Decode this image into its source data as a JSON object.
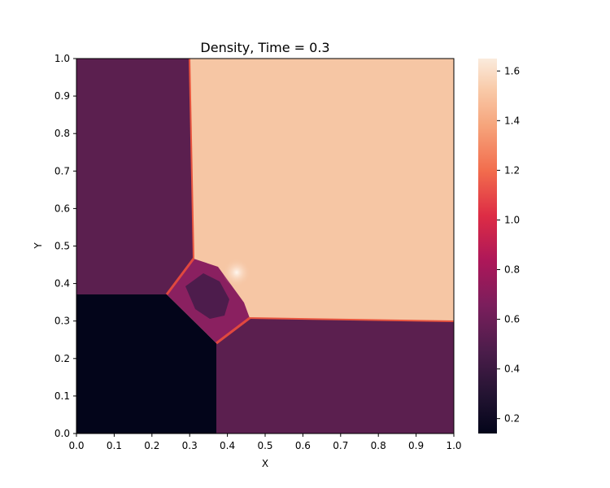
{
  "chart_data": {
    "type": "heatmap",
    "title": "Density, Time = 0.3",
    "xlabel": "X",
    "ylabel": "Y",
    "xlim": [
      0.0,
      1.0
    ],
    "ylim": [
      0.0,
      1.0
    ],
    "x_ticks": [
      "0.0",
      "0.1",
      "0.2",
      "0.3",
      "0.4",
      "0.5",
      "0.6",
      "0.7",
      "0.8",
      "0.9",
      "1.0"
    ],
    "y_ticks": [
      "0.0",
      "0.1",
      "0.2",
      "0.3",
      "0.4",
      "0.5",
      "0.6",
      "0.7",
      "0.8",
      "0.9",
      "1.0"
    ],
    "colorbar": {
      "colormap": "rocket",
      "range": [
        0.14,
        1.65
      ],
      "ticks": [
        0.2,
        0.4,
        0.6,
        0.8,
        1.0,
        1.2,
        1.4,
        1.6
      ],
      "tick_labels": [
        "0.2",
        "0.4",
        "0.6",
        "0.8",
        "1.0",
        "1.2",
        "1.4",
        "1.6"
      ]
    },
    "regions": [
      {
        "name": "upper-left state",
        "density": 0.53,
        "x": [
          0.0,
          0.3
        ],
        "y": [
          0.37,
          1.0
        ]
      },
      {
        "name": "lower-left state",
        "density": 0.14,
        "x": [
          0.0,
          0.37
        ],
        "y": [
          0.0,
          0.37
        ]
      },
      {
        "name": "lower-right state",
        "density": 0.53,
        "x": [
          0.37,
          1.0
        ],
        "y": [
          0.0,
          0.3
        ]
      },
      {
        "name": "upper-right state",
        "density": 1.45,
        "x": [
          0.3,
          1.0
        ],
        "y": [
          0.3,
          1.0
        ]
      },
      {
        "name": "central interaction region",
        "density": 0.7,
        "x": [
          0.24,
          0.46
        ],
        "y": [
          0.24,
          0.46
        ]
      }
    ],
    "grid": false
  }
}
